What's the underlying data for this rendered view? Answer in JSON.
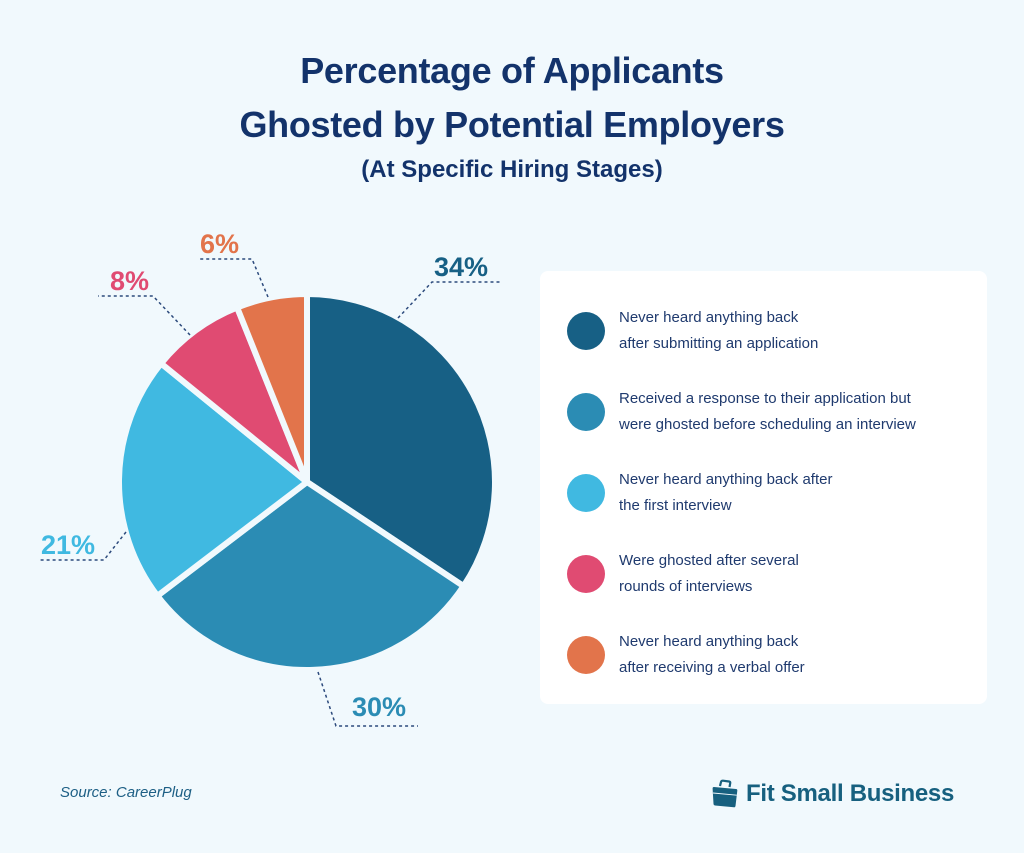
{
  "title": {
    "line1": "Percentage of Applicants",
    "line2": "Ghosted by Potential Employers",
    "subtitle": "(At Specific Hiring Stages)"
  },
  "chart_data": {
    "type": "pie",
    "title": "Percentage of Applicants Ghosted by Potential Employers",
    "subtitle": "(At Specific Hiring Stages)",
    "categories": [
      "Never heard anything back after submitting an application",
      "Received a response to their application but were ghosted before scheduling an interview",
      "Never heard anything back after the first interview",
      "Were ghosted after several rounds of interviews",
      "Never heard anything back after receiving a verbal offer"
    ],
    "values": [
      34,
      30,
      21,
      8,
      6
    ],
    "labels": [
      "34%",
      "30%",
      "21%",
      "8%",
      "6%"
    ],
    "colors": [
      "#176085",
      "#2b8cb4",
      "#40b9e1",
      "#e04b72",
      "#e2744b"
    ],
    "legend_position": "right",
    "start_angle": "12 o'clock",
    "direction": "clockwise"
  },
  "legend": {
    "items": [
      {
        "line1": "Never heard anything back",
        "line2": "after submitting an application",
        "color": "#176085"
      },
      {
        "line1": "Received a response to their application but",
        "line2": "were ghosted before scheduling an interview",
        "color": "#2b8cb4"
      },
      {
        "line1": "Never heard anything back after",
        "line2": "the first interview",
        "color": "#40b9e1"
      },
      {
        "line1": "Were ghosted after several",
        "line2": "rounds of interviews",
        "color": "#e04b72"
      },
      {
        "line1": "Never heard anything back",
        "line2": "after receiving a verbal offer",
        "color": "#e2744b"
      }
    ]
  },
  "footer": {
    "source": "Source:  CareerPlug",
    "brand": "Fit Small Business",
    "brand_icon": "briefcase-icon"
  }
}
